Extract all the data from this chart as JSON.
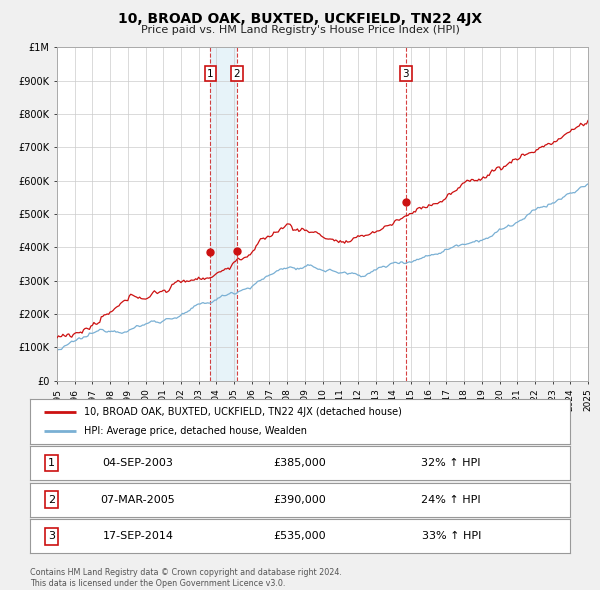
{
  "title": "10, BROAD OAK, BUXTED, UCKFIELD, TN22 4JX",
  "subtitle": "Price paid vs. HM Land Registry's House Price Index (HPI)",
  "ylim": [
    0,
    1000000
  ],
  "xlim_start": 1995,
  "xlim_end": 2025,
  "yticks": [
    0,
    100000,
    200000,
    300000,
    400000,
    500000,
    600000,
    700000,
    800000,
    900000,
    1000000
  ],
  "ytick_labels": [
    "£0",
    "£100K",
    "£200K",
    "£300K",
    "£400K",
    "£500K",
    "£600K",
    "£700K",
    "£800K",
    "£900K",
    "£1M"
  ],
  "sale_color": "#cc1111",
  "hpi_color": "#7ab0d4",
  "sale_dot_color": "#cc1111",
  "vline_color": "#cc1111",
  "shade_color": "#d0e8f5",
  "transactions": [
    {
      "label": 1,
      "date_num": 2003.67,
      "price": 385000,
      "date_str": "04-SEP-2003",
      "price_str": "£385,000",
      "pct": "32%",
      "dir": "↑"
    },
    {
      "label": 2,
      "date_num": 2005.17,
      "price": 390000,
      "date_str": "07-MAR-2005",
      "price_str": "£390,000",
      "pct": "24%",
      "dir": "↑"
    },
    {
      "label": 3,
      "date_num": 2014.71,
      "price": 535000,
      "date_str": "17-SEP-2014",
      "price_str": "£535,000",
      "pct": "33%",
      "dir": "↑"
    }
  ],
  "legend_sale_label": "10, BROAD OAK, BUXTED, UCKFIELD, TN22 4JX (detached house)",
  "legend_hpi_label": "HPI: Average price, detached house, Wealden",
  "footnote": "Contains HM Land Registry data © Crown copyright and database right 2024.\nThis data is licensed under the Open Government Licence v3.0.",
  "background_color": "#f0f0f0",
  "plot_bg_color": "#ffffff",
  "grid_color": "#cccccc"
}
